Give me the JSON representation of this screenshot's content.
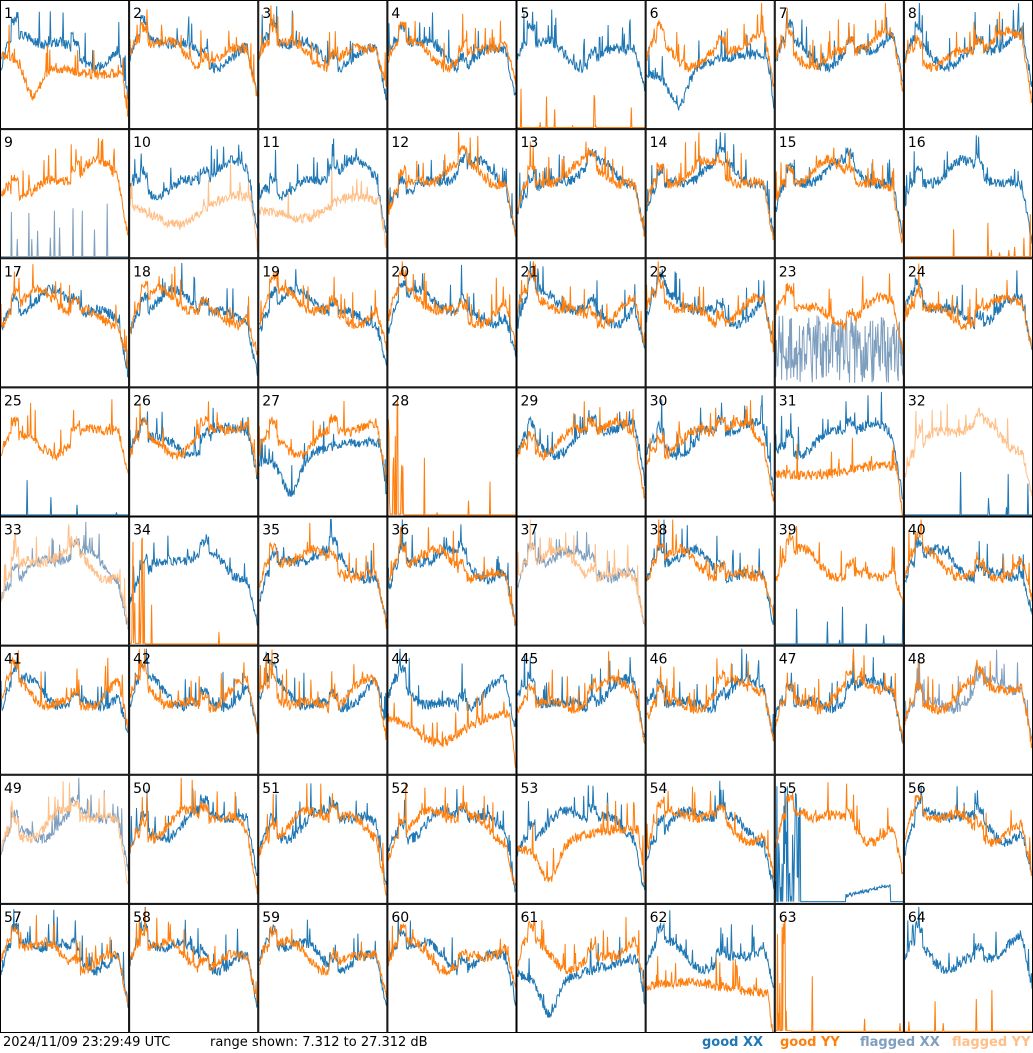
{
  "chart_data": {
    "type": "line",
    "grid": {
      "rows": 8,
      "cols": 8
    },
    "range_db": [
      7.312,
      27.312
    ],
    "panel_labels": [
      "1",
      "2",
      "3",
      "4",
      "5",
      "6",
      "7",
      "8",
      "9",
      "10",
      "11",
      "12",
      "13",
      "14",
      "15",
      "16",
      "17",
      "18",
      "19",
      "20",
      "21",
      "22",
      "23",
      "24",
      "25",
      "26",
      "27",
      "28",
      "29",
      "30",
      "31",
      "32",
      "33",
      "34",
      "35",
      "36",
      "37",
      "38",
      "39",
      "40",
      "41",
      "42",
      "43",
      "44",
      "45",
      "46",
      "47",
      "48",
      "49",
      "50",
      "51",
      "52",
      "53",
      "54",
      "55",
      "56",
      "57",
      "58",
      "59",
      "60",
      "61",
      "62",
      "63",
      "64"
    ],
    "series": [
      {
        "name": "good XX",
        "color": "#1f77b4"
      },
      {
        "name": "good YY",
        "color": "#ff7f0e"
      },
      {
        "name": "flagged XX",
        "color": "#7f9fbf"
      },
      {
        "name": "flagged YY",
        "color": "#ffbf87"
      }
    ],
    "panel_styles": {
      "1": {
        "xx": "good",
        "yy": "good",
        "yy_shape": "dip"
      },
      "5": {
        "xx": "good",
        "yy": "flat_spikes"
      },
      "6": {
        "xx": "good",
        "yy": "good",
        "xx_shape": "dip"
      },
      "9": {
        "xx": "flagged_flat",
        "yy": "good"
      },
      "10": {
        "xx": "good",
        "yy": "flagged",
        "yy_shape": "bowl"
      },
      "11": {
        "xx": "good",
        "yy": "flagged",
        "yy_shape": "bowl"
      },
      "16": {
        "xx": "good",
        "yy": "flat_spikes"
      },
      "23": {
        "xx": "flagged_noise",
        "yy": "good"
      },
      "25": {
        "xx": "flat_spikes",
        "yy": "good"
      },
      "27": {
        "xx": "good",
        "yy": "good",
        "xx_shape": "dip"
      },
      "28": {
        "xx": "none",
        "yy": "dead"
      },
      "31": {
        "xx": "good",
        "yy": "good",
        "yy_shape": "low"
      },
      "32": {
        "xx": "flat_spikes",
        "yy": "flagged"
      },
      "33": {
        "xx": "flagged",
        "yy": "flagged"
      },
      "34": {
        "xx": "good",
        "yy": "dead"
      },
      "37": {
        "xx": "flagged",
        "yy": "flagged"
      },
      "39": {
        "xx": "flat_spikes",
        "yy": "good"
      },
      "44": {
        "xx": "good",
        "yy": "good",
        "yy_shape": "bowl"
      },
      "48": {
        "xx": "flagged",
        "yy": "good"
      },
      "49": {
        "xx": "flagged",
        "yy": "flagged"
      },
      "53": {
        "xx": "good",
        "yy": "good",
        "yy_shape": "dip"
      },
      "55": {
        "xx": "dead_ramp",
        "yy": "good"
      },
      "61": {
        "xx": "good",
        "yy": "good",
        "xx_shape": "dip"
      },
      "62": {
        "xx": "good",
        "yy": "good",
        "yy_shape": "low"
      },
      "63": {
        "xx": "none",
        "yy": "dead"
      },
      "64": {
        "xx": "good",
        "yy": "flat_spikes"
      }
    }
  },
  "footer": {
    "timestamp": "2024/11/09 23:29:49 UTC",
    "range_text": "range shown: 7.312 to 27.312 dB"
  },
  "legend": [
    {
      "label": "good XX",
      "color": "#1f77b4"
    },
    {
      "label": "good YY",
      "color": "#ff7f0e"
    },
    {
      "label": "flagged XX",
      "color": "#7f9fbf"
    },
    {
      "label": "flagged YY",
      "color": "#ffbf87"
    }
  ]
}
